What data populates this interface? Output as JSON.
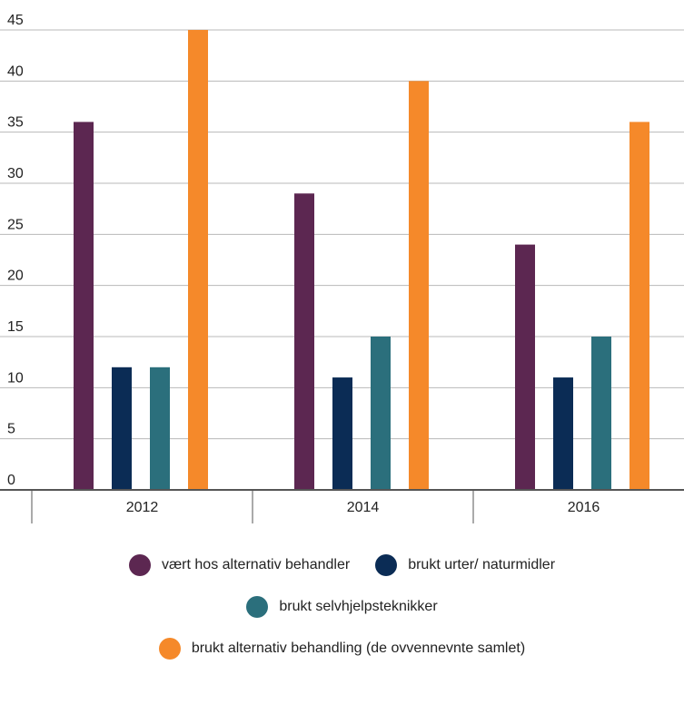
{
  "chart_data": {
    "type": "bar",
    "categories": [
      "2012",
      "2014",
      "2016"
    ],
    "series": [
      {
        "name": "vært hos alternativ behandler",
        "color": "#5c2751",
        "values": [
          36,
          29,
          24
        ]
      },
      {
        "name": "brukt urter/ naturmidler",
        "color": "#0b2c55",
        "values": [
          12,
          11,
          11
        ]
      },
      {
        "name": "brukt selvhjelpsteknikker",
        "color": "#2b6f7c",
        "values": [
          12,
          15,
          15
        ]
      },
      {
        "name": "brukt alternativ behandling (de ovvennevnte samlet)",
        "color": "#f5892a",
        "values": [
          45,
          40,
          36
        ]
      }
    ],
    "y_ticks": [
      "0",
      "5",
      "10",
      "15",
      "20",
      "25",
      "30",
      "35",
      "40",
      "45"
    ],
    "ylim": [
      0,
      45
    ],
    "grid": true,
    "legend_position": "bottom",
    "title": "",
    "xlabel": "",
    "ylabel": ""
  },
  "legend": {
    "rows": [
      [
        {
          "label": "vært hos alternativ behandler",
          "color": "#5c2751"
        },
        {
          "label": "brukt urter/ naturmidler",
          "color": "#0b2c55"
        }
      ],
      [
        {
          "label": "brukt selvhjelpsteknikker",
          "color": "#2b6f7c"
        }
      ],
      [
        {
          "label": "brukt alternativ behandling (de ovvennevnte samlet)",
          "color": "#f5892a"
        }
      ]
    ]
  }
}
